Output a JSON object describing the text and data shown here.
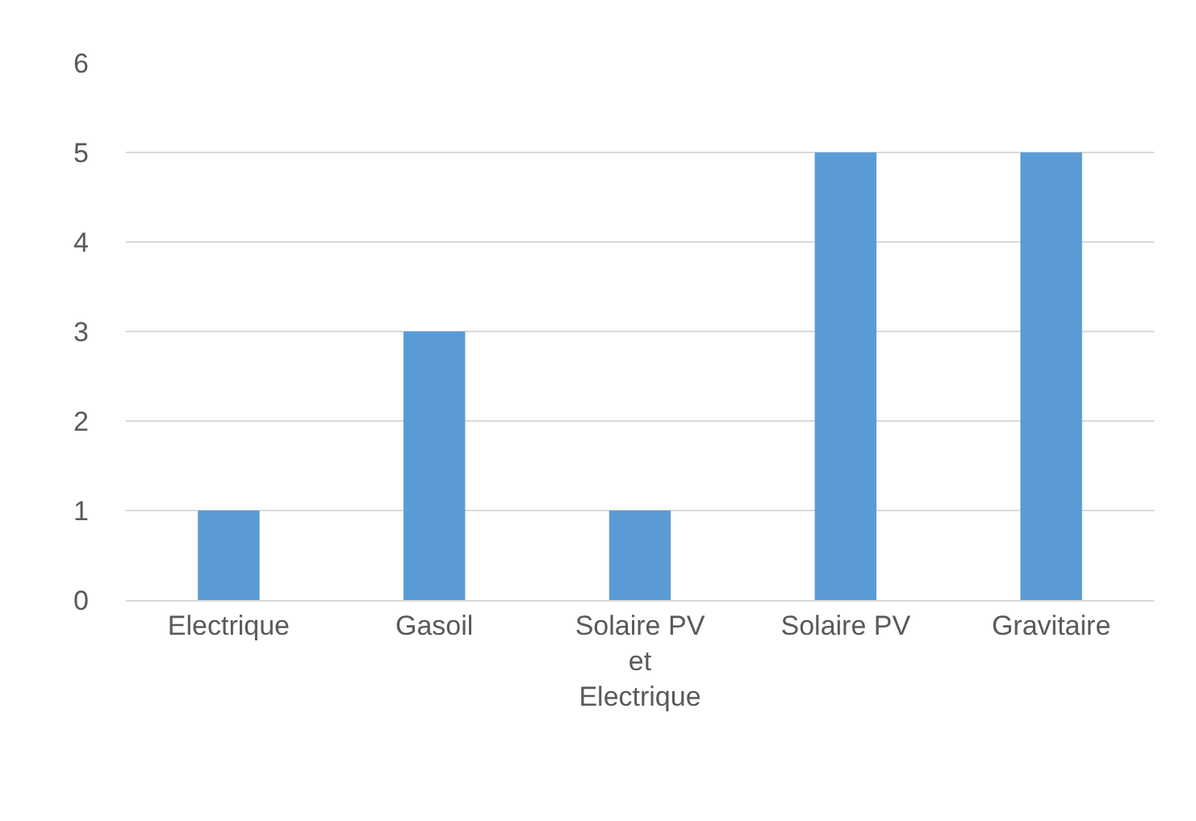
{
  "chart_data": {
    "type": "bar",
    "categories": [
      "Electrique",
      "Gasoil",
      "Solaire PV et Electrique",
      "Solaire PV",
      "Gravitaire"
    ],
    "values": [
      1,
      3,
      1,
      5,
      5
    ],
    "color": "#5b9bd5",
    "ylim": [
      0,
      6
    ],
    "yticks": [
      0,
      1,
      2,
      3,
      4,
      5,
      6
    ],
    "grid": "y"
  }
}
